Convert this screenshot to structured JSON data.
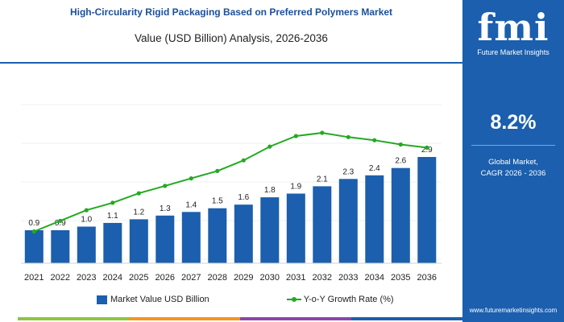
{
  "header": {
    "title": "High-Circularity Rigid Packaging Based on Preferred Polymers Market",
    "subtitle": "Value (USD Billion) Analysis, 2026-2036"
  },
  "colors": {
    "bar": "#1b5fae",
    "line": "#22aa22",
    "accent": "#1b5fae"
  },
  "chart_data": {
    "type": "bar",
    "categories": [
      "2021",
      "2022",
      "2023",
      "2024",
      "2025",
      "2026",
      "2027",
      "2028",
      "2029",
      "2030",
      "2031",
      "2032",
      "2033",
      "2034",
      "2035",
      "2036"
    ],
    "series": [
      {
        "name": "Market Value USD Billion",
        "type": "bar",
        "values": [
          0.9,
          0.9,
          1.0,
          1.1,
          1.2,
          1.3,
          1.4,
          1.5,
          1.6,
          1.8,
          1.9,
          2.1,
          2.3,
          2.4,
          2.6,
          2.9
        ],
        "labels": [
          "0.9",
          "0.9",
          "1.0",
          "1.1",
          "1.2",
          "1.3",
          "1.4",
          "1.5",
          "1.6",
          "1.8",
          "1.9",
          "2.1",
          "2.3",
          "2.4",
          "2.6",
          "2.9"
        ]
      },
      {
        "name": "Y-o-Y Growth Rate (%)",
        "type": "line",
        "values": [
          3.0,
          4.0,
          5.0,
          5.7,
          6.6,
          7.3,
          8.0,
          8.7,
          9.7,
          11.0,
          12.0,
          12.3,
          11.9,
          11.6,
          11.2,
          10.9
        ]
      }
    ],
    "bar_ylim": [
      0,
      3.2
    ],
    "line_ylim": [
      0,
      15
    ],
    "grid": false,
    "legend": "bottom"
  },
  "sidebar": {
    "logo_text": "fmi",
    "logo_caption": "Future Market Insights",
    "stat_value": "8.2%",
    "stat_line1": "Global Market,",
    "stat_line2": "CAGR 2026 - 2036",
    "website": "www.futuremarketinsights.com"
  }
}
